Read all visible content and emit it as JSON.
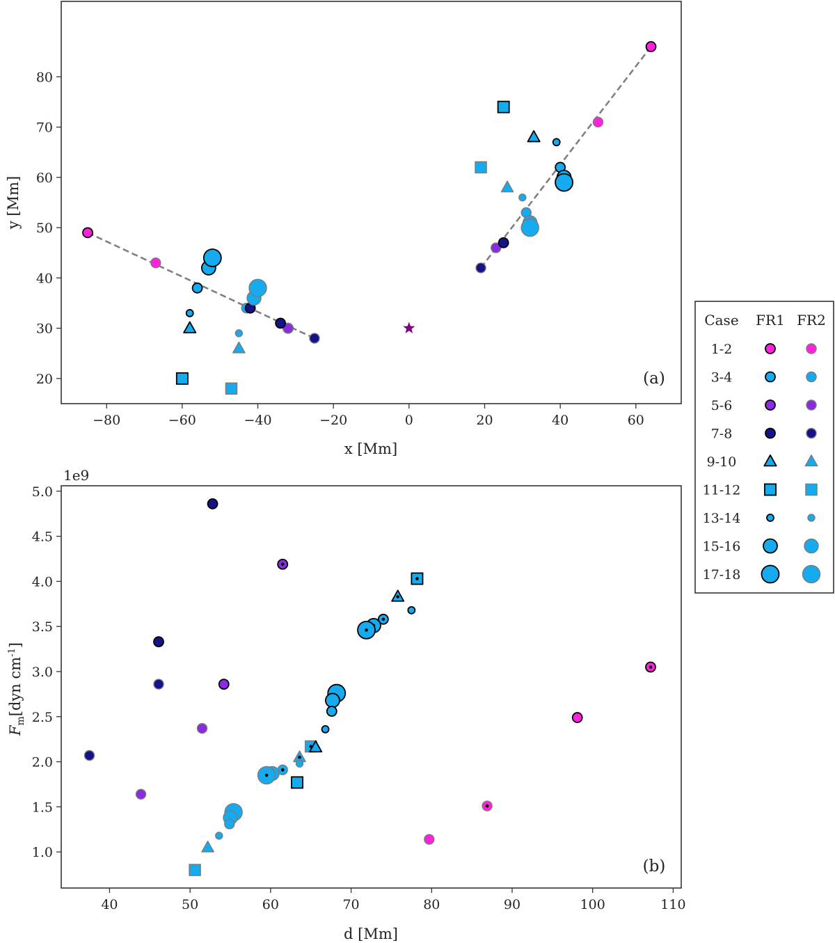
{
  "legend": {
    "headers": [
      "Case",
      "FR1",
      "FR2"
    ],
    "entries": [
      {
        "label": "1-2",
        "color": "#ff22dd",
        "marker": "circle",
        "size": "normal"
      },
      {
        "label": "3-4",
        "color": "#16aaee",
        "marker": "circle",
        "size": "normal"
      },
      {
        "label": "5-6",
        "color": "#8a2be2",
        "marker": "circle",
        "size": "normal"
      },
      {
        "label": "7-8",
        "color": "#14138a",
        "marker": "circle",
        "size": "normal"
      },
      {
        "label": "9-10",
        "color": "#16aaee",
        "marker": "triangle",
        "size": "normal"
      },
      {
        "label": "11-12",
        "color": "#16aaee",
        "marker": "square",
        "size": "normal"
      },
      {
        "label": "13-14",
        "color": "#16aaee",
        "marker": "circle",
        "size": "small"
      },
      {
        "label": "15-16",
        "color": "#16aaee",
        "marker": "circle",
        "size": "large"
      },
      {
        "label": "17-18",
        "color": "#16aaee",
        "marker": "circle",
        "size": "xlarge"
      }
    ]
  },
  "chart_data": [
    {
      "type": "scatter",
      "panel_label": "(a)",
      "xlabel": "x [Mm]",
      "ylabel": "y [Mm]",
      "xlim": [
        -92,
        72
      ],
      "ylim": [
        15,
        95
      ],
      "xticks": [
        -80,
        -60,
        -40,
        -20,
        0,
        20,
        40,
        60
      ],
      "yticks": [
        20,
        30,
        40,
        50,
        60,
        70,
        80
      ],
      "trend_lines": [
        {
          "x": [
            -85,
            -25
          ],
          "y": [
            49,
            28
          ]
        },
        {
          "x": [
            19,
            64
          ],
          "y": [
            42,
            86
          ]
        }
      ],
      "star": {
        "x": 0,
        "y": 30,
        "color": "#800080"
      },
      "points": [
        {
          "case": "1-2",
          "fr": 1,
          "x": -85,
          "y": 49
        },
        {
          "case": "1-2",
          "fr": 2,
          "x": -67,
          "y": 43
        },
        {
          "case": "3-4",
          "fr": 1,
          "x": -56,
          "y": 38
        },
        {
          "case": "3-4",
          "fr": 2,
          "x": -43,
          "y": 34
        },
        {
          "case": "5-6",
          "fr": 1,
          "x": -32,
          "y": 30
        },
        {
          "case": "5-6",
          "fr": 2,
          "x": -32,
          "y": 30
        },
        {
          "case": "7-8",
          "fr": 1,
          "x": -34,
          "y": 31
        },
        {
          "case": "7-8",
          "fr": 2,
          "x": -25,
          "y": 28
        },
        {
          "case": "7-8",
          "fr": 1,
          "x": -42,
          "y": 34
        },
        {
          "case": "9-10",
          "fr": 1,
          "x": -58,
          "y": 30
        },
        {
          "case": "9-10",
          "fr": 2,
          "x": -45,
          "y": 26
        },
        {
          "case": "11-12",
          "fr": 1,
          "x": -60,
          "y": 20
        },
        {
          "case": "11-12",
          "fr": 2,
          "x": -47,
          "y": 18
        },
        {
          "case": "13-14",
          "fr": 1,
          "x": -58,
          "y": 33
        },
        {
          "case": "13-14",
          "fr": 2,
          "x": -45,
          "y": 29
        },
        {
          "case": "15-16",
          "fr": 1,
          "x": -53,
          "y": 42
        },
        {
          "case": "15-16",
          "fr": 2,
          "x": -41,
          "y": 36
        },
        {
          "case": "17-18",
          "fr": 1,
          "x": -52,
          "y": 44
        },
        {
          "case": "17-18",
          "fr": 2,
          "x": -40,
          "y": 38
        },
        {
          "case": "1-2",
          "fr": 1,
          "x": 64,
          "y": 86
        },
        {
          "case": "1-2",
          "fr": 2,
          "x": 50,
          "y": 71
        },
        {
          "case": "7-8",
          "fr": 2,
          "x": 19,
          "y": 42
        },
        {
          "case": "5-6",
          "fr": 2,
          "x": 23,
          "y": 46
        },
        {
          "case": "7-8",
          "fr": 1,
          "x": 25,
          "y": 47
        },
        {
          "case": "9-10",
          "fr": 1,
          "x": 33,
          "y": 68
        },
        {
          "case": "9-10",
          "fr": 2,
          "x": 26,
          "y": 58
        },
        {
          "case": "11-12",
          "fr": 1,
          "x": 25,
          "y": 74
        },
        {
          "case": "11-12",
          "fr": 2,
          "x": 19,
          "y": 62
        },
        {
          "case": "13-14",
          "fr": 1,
          "x": 39,
          "y": 67
        },
        {
          "case": "13-14",
          "fr": 2,
          "x": 30,
          "y": 56
        },
        {
          "case": "3-4",
          "fr": 1,
          "x": 40,
          "y": 62
        },
        {
          "case": "3-4",
          "fr": 2,
          "x": 31,
          "y": 53
        },
        {
          "case": "15-16",
          "fr": 1,
          "x": 41,
          "y": 60
        },
        {
          "case": "15-16",
          "fr": 2,
          "x": 32,
          "y": 51
        },
        {
          "case": "17-18",
          "fr": 1,
          "x": 41,
          "y": 59
        },
        {
          "case": "17-18",
          "fr": 2,
          "x": 32,
          "y": 50
        }
      ]
    },
    {
      "type": "scatter",
      "panel_label": "(b)",
      "xlabel": "d [Mm]",
      "ylabel": "F_m [dyn cm^-1]",
      "y_multiplier": "1e9",
      "xlim": [
        34,
        111
      ],
      "ylim": [
        0.6,
        5.06
      ],
      "xticks": [
        40,
        50,
        60,
        70,
        80,
        90,
        100,
        110
      ],
      "yticks": [
        1.0,
        1.5,
        2.0,
        2.5,
        3.0,
        3.5,
        4.0,
        4.5,
        5.0
      ],
      "points": [
        {
          "case": "7-8",
          "fr": 1,
          "x": 52.8,
          "y": 4.86
        },
        {
          "case": "5-6",
          "fr": 1,
          "x": 61.5,
          "y": 4.19,
          "dot": true
        },
        {
          "case": "11-12",
          "fr": 1,
          "x": 78.2,
          "y": 4.03,
          "dot": true
        },
        {
          "case": "9-10",
          "fr": 1,
          "x": 75.8,
          "y": 3.83,
          "dot": true
        },
        {
          "case": "13-14",
          "fr": 1,
          "x": 77.5,
          "y": 3.68
        },
        {
          "case": "3-4",
          "fr": 1,
          "x": 74.0,
          "y": 3.58,
          "dot": true
        },
        {
          "case": "15-16",
          "fr": 1,
          "x": 72.8,
          "y": 3.51,
          "dot": true
        },
        {
          "case": "17-18",
          "fr": 1,
          "x": 71.9,
          "y": 3.46,
          "dot": true
        },
        {
          "case": "7-8",
          "fr": 1,
          "x": 46.1,
          "y": 3.33
        },
        {
          "case": "1-2",
          "fr": 1,
          "x": 107.2,
          "y": 3.05,
          "dot": true
        },
        {
          "case": "7-8",
          "fr": 2,
          "x": 46.1,
          "y": 2.86
        },
        {
          "case": "5-6",
          "fr": 1,
          "x": 54.2,
          "y": 2.86
        },
        {
          "case": "17-18",
          "fr": 1,
          "x": 68.2,
          "y": 2.76
        },
        {
          "case": "15-16",
          "fr": 1,
          "x": 67.7,
          "y": 2.68
        },
        {
          "case": "3-4",
          "fr": 1,
          "x": 67.6,
          "y": 2.56
        },
        {
          "case": "1-2",
          "fr": 1,
          "x": 98.1,
          "y": 2.49
        },
        {
          "case": "5-6",
          "fr": 2,
          "x": 51.5,
          "y": 2.37
        },
        {
          "case": "13-14",
          "fr": 1,
          "x": 66.8,
          "y": 2.36
        },
        {
          "case": "11-12",
          "fr": 2,
          "x": 65.0,
          "y": 2.17,
          "dot": true
        },
        {
          "case": "9-10",
          "fr": 1,
          "x": 65.6,
          "y": 2.16
        },
        {
          "case": "7-8",
          "fr": 2,
          "x": 37.5,
          "y": 2.07
        },
        {
          "case": "9-10",
          "fr": 2,
          "x": 63.6,
          "y": 2.05,
          "dot": true
        },
        {
          "case": "13-14",
          "fr": 2,
          "x": 63.6,
          "y": 1.98
        },
        {
          "case": "3-4",
          "fr": 2,
          "x": 61.5,
          "y": 1.91,
          "dot": true
        },
        {
          "case": "15-16",
          "fr": 2,
          "x": 60.2,
          "y": 1.87,
          "dot": true
        },
        {
          "case": "17-18",
          "fr": 2,
          "x": 59.5,
          "y": 1.85,
          "dot": true
        },
        {
          "case": "11-12",
          "fr": 1,
          "x": 63.3,
          "y": 1.77
        },
        {
          "case": "5-6",
          "fr": 2,
          "x": 43.9,
          "y": 1.64
        },
        {
          "case": "1-2",
          "fr": 2,
          "x": 86.9,
          "y": 1.51,
          "dot": true
        },
        {
          "case": "17-18",
          "fr": 2,
          "x": 55.4,
          "y": 1.44
        },
        {
          "case": "15-16",
          "fr": 2,
          "x": 55.0,
          "y": 1.38
        },
        {
          "case": "3-4",
          "fr": 2,
          "x": 54.9,
          "y": 1.31
        },
        {
          "case": "13-14",
          "fr": 2,
          "x": 53.6,
          "y": 1.18
        },
        {
          "case": "1-2",
          "fr": 2,
          "x": 79.7,
          "y": 1.14
        },
        {
          "case": "9-10",
          "fr": 2,
          "x": 52.2,
          "y": 1.05
        },
        {
          "case": "11-12",
          "fr": 2,
          "x": 50.6,
          "y": 0.8
        }
      ]
    }
  ]
}
